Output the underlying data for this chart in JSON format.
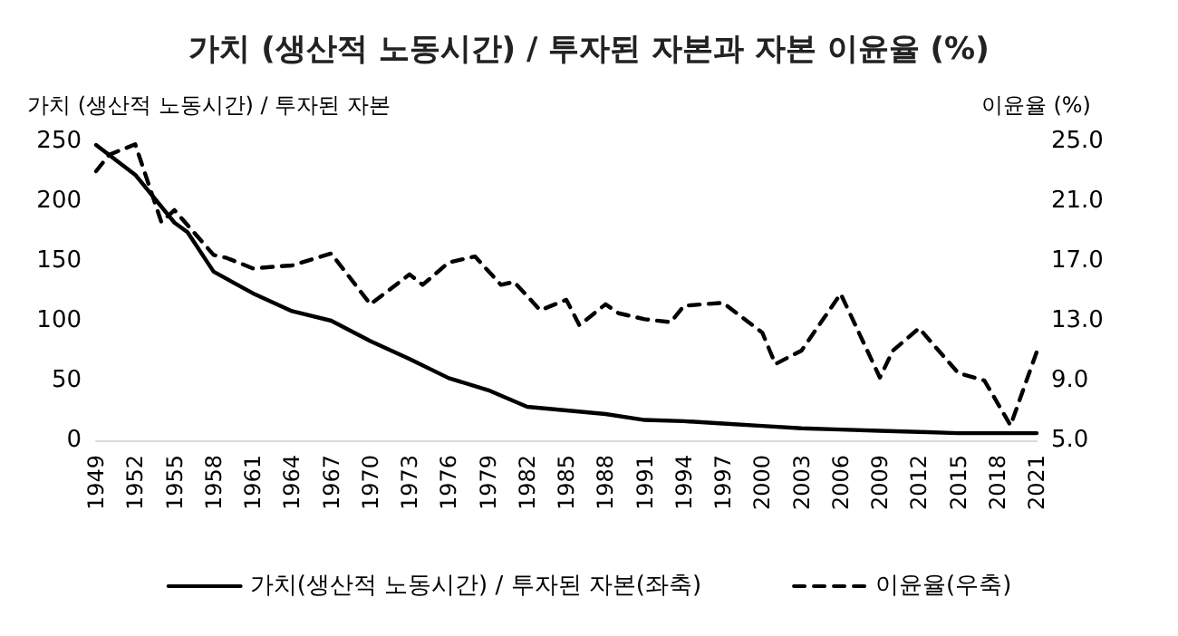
{
  "chart_data": {
    "type": "line",
    "title": "가치 (생산적 노동시간) / 투자된 자본과 자본 이윤율 (%)",
    "ylabel": "가치 (생산적 노동시간) / 투자된 자본",
    "y2label": "이윤율 (%)",
    "xlim": [
      1949,
      2021
    ],
    "xticks": [
      1949,
      1952,
      1955,
      1958,
      1961,
      1964,
      1967,
      1970,
      1973,
      1976,
      1979,
      1982,
      1985,
      1988,
      1991,
      1994,
      1997,
      2000,
      2003,
      2006,
      2009,
      2012,
      2015,
      2018,
      2021
    ],
    "ylim": [
      0,
      250
    ],
    "yticks": [
      0,
      50,
      100,
      150,
      200,
      250
    ],
    "y2lim": [
      5,
      25
    ],
    "y2ticks": [
      {
        "value": 5,
        "label": "5.0"
      },
      {
        "value": 9,
        "label": "9.0"
      },
      {
        "value": 13,
        "label": "13.0"
      },
      {
        "value": 17,
        "label": "17.0"
      },
      {
        "value": 21,
        "label": "21.0"
      },
      {
        "value": 25,
        "label": "25.0"
      }
    ],
    "grid": false,
    "legend": "bottom",
    "marker": "none",
    "series": [
      {
        "name": "가치(생산적 노동시간) / 투자된 자본(좌축)",
        "color": "#000000",
        "line_style": "solid",
        "x": [
          1949,
          1952,
          1955,
          1956,
          1958,
          1961,
          1964,
          1967,
          1970,
          1973,
          1976,
          1979,
          1982,
          1985,
          1988,
          1991,
          1994,
          1997,
          2000,
          2003,
          2006,
          2009,
          2012,
          2015,
          2018,
          2021
        ],
        "values": [
          247,
          222,
          182,
          174,
          141,
          123,
          108,
          100,
          83,
          68,
          52,
          42,
          28,
          25,
          22,
          17,
          16,
          14,
          12,
          10,
          9,
          8,
          7,
          6,
          6,
          6
        ]
      },
      {
        "name": "이윤율(우축)",
        "color": "#000000",
        "line_style": "dashed",
        "axis": "y2",
        "x": [
          1949,
          1950,
          1952,
          1954,
          1955,
          1958,
          1959,
          1961,
          1964,
          1967,
          1970,
          1973,
          1974,
          1976,
          1978,
          1980,
          1981,
          1983,
          1985,
          1986,
          1988,
          1989,
          1991,
          1993,
          1994,
          1997,
          2000,
          2001,
          2003,
          2006,
          2009,
          2010,
          2012,
          2015,
          2017,
          2019,
          2021
        ],
        "values": [
          23.0,
          24.1,
          24.8,
          19.6,
          20.4,
          17.4,
          17.2,
          16.5,
          16.7,
          17.5,
          14.1,
          16.1,
          15.4,
          16.9,
          17.3,
          15.4,
          15.6,
          13.7,
          14.4,
          12.7,
          14.1,
          13.5,
          13.1,
          12.9,
          14.0,
          14.2,
          12.2,
          10.1,
          11.0,
          14.8,
          9.2,
          11.0,
          12.5,
          9.5,
          9.0,
          6.0,
          10.9
        ]
      }
    ]
  }
}
